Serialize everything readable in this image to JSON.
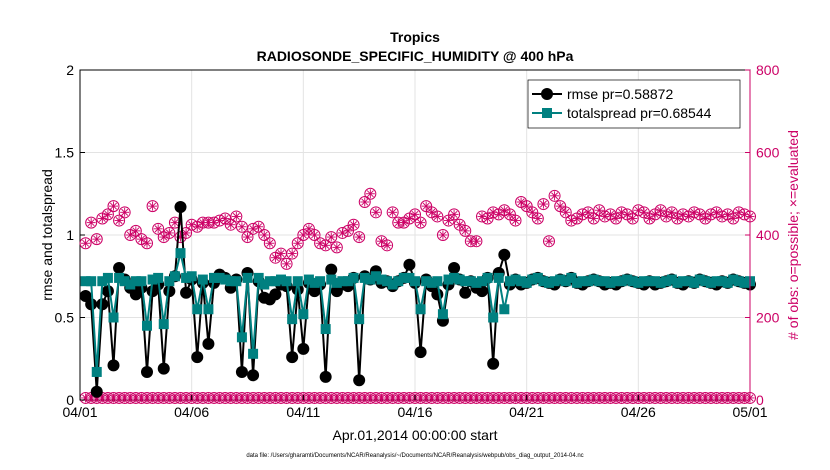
{
  "chart_data": {
    "type": "line",
    "title": "Tropics",
    "subtitle": "RADIOSONDE_SPECIFIC_HUMIDITY @ 400 hPa",
    "xlabel": "Apr.01,2014 00:00:00 start",
    "ylabel_left": "rmse and totalspread",
    "ylabel_right": "# of obs: o=possible; ×=evaluated",
    "footnote": "data file: /Users/gharamti/Documents/NCAR/Reanalysis/~/Documents/NCAR/Reanalysis/webpub/obs_diag_output_2014-04.nc",
    "xlim": [
      0,
      30
    ],
    "ylim_left": [
      0,
      2
    ],
    "ylim_right": [
      0,
      800
    ],
    "x_ticks": [
      {
        "value": 0,
        "label": "04/01"
      },
      {
        "value": 5,
        "label": "04/06"
      },
      {
        "value": 10,
        "label": "04/11"
      },
      {
        "value": 15,
        "label": "04/16"
      },
      {
        "value": 20,
        "label": "04/21"
      },
      {
        "value": 25,
        "label": "04/26"
      },
      {
        "value": 30,
        "label": "05/01"
      }
    ],
    "y_ticks_left": [
      {
        "value": 0,
        "label": "0"
      },
      {
        "value": 0.5,
        "label": "0.5"
      },
      {
        "value": 1,
        "label": "1"
      },
      {
        "value": 1.5,
        "label": "1.5"
      },
      {
        "value": 2,
        "label": "2"
      }
    ],
    "y_ticks_right": [
      {
        "value": 0,
        "label": "0"
      },
      {
        "value": 200,
        "label": "200"
      },
      {
        "value": 400,
        "label": "400"
      },
      {
        "value": 600,
        "label": "600"
      },
      {
        "value": 800,
        "label": "800"
      }
    ],
    "x_days": [
      0.25,
      0.5,
      0.75,
      1.0,
      1.25,
      1.5,
      1.75,
      2.0,
      2.25,
      2.5,
      2.75,
      3.0,
      3.25,
      3.5,
      3.75,
      4.0,
      4.25,
      4.5,
      4.75,
      5.0,
      5.25,
      5.5,
      5.75,
      6.0,
      6.25,
      6.5,
      6.75,
      7.0,
      7.25,
      7.5,
      7.75,
      8.0,
      8.25,
      8.5,
      8.75,
      9.0,
      9.25,
      9.5,
      9.75,
      10.0,
      10.25,
      10.5,
      10.75,
      11.0,
      11.25,
      11.5,
      11.75,
      12.0,
      12.25,
      12.5,
      12.75,
      13.0,
      13.25,
      13.5,
      13.75,
      14.0,
      14.25,
      14.5,
      14.75,
      15.0,
      15.25,
      15.5,
      15.75,
      16.0,
      16.25,
      16.5,
      16.75,
      17.0,
      17.25,
      17.5,
      17.75,
      18.0,
      18.25,
      18.5,
      18.75,
      19.0,
      19.25,
      19.5,
      19.75,
      20.0,
      20.25,
      20.5,
      20.75,
      21.0,
      21.25,
      21.5,
      21.75,
      22.0,
      22.25,
      22.5,
      22.75,
      23.0,
      23.25,
      23.5,
      23.75,
      24.0,
      24.25,
      24.5,
      24.75,
      25.0,
      25.25,
      25.5,
      25.75,
      26.0,
      26.25,
      26.5,
      26.75,
      27.0,
      27.25,
      27.5,
      27.75,
      28.0,
      28.25,
      28.5,
      28.75,
      29.0,
      29.25,
      29.5,
      29.75,
      30.0
    ],
    "series": [
      {
        "name": "rmse pr=0.58872",
        "axis": "left",
        "color": "#000000",
        "marker": "circle",
        "values": [
          0.63,
          0.58,
          0.05,
          0.58,
          0.66,
          0.21,
          0.8,
          0.73,
          0.68,
          0.64,
          0.68,
          0.17,
          0.66,
          0.7,
          0.19,
          0.66,
          0.75,
          1.17,
          0.65,
          0.73,
          0.26,
          0.71,
          0.34,
          0.71,
          0.76,
          0.74,
          0.68,
          0.73,
          0.17,
          0.77,
          0.15,
          0.72,
          0.62,
          0.61,
          0.64,
          0.7,
          0.69,
          0.26,
          0.67,
          0.31,
          0.71,
          0.66,
          0.7,
          0.14,
          0.79,
          0.66,
          0.7,
          0.69,
          0.74,
          0.12,
          0.75,
          0.73,
          0.78,
          0.71,
          0.72,
          0.69,
          0.72,
          0.74,
          0.82,
          0.71,
          0.29,
          0.73,
          0.69,
          0.64,
          0.48,
          0.7,
          0.8,
          0.73,
          0.65,
          0.72,
          0.68,
          0.66,
          0.74,
          0.22,
          0.77,
          0.88,
          0.7,
          0.73,
          0.7,
          0.71,
          0.73,
          0.74,
          0.72,
          0.71,
          0.7,
          0.73,
          0.72,
          0.74,
          0.71,
          0.7,
          0.72,
          0.73,
          0.72,
          0.7,
          0.71,
          0.7,
          0.72,
          0.73,
          0.72,
          0.71,
          0.7,
          0.72,
          0.7,
          0.71,
          0.72,
          0.73,
          0.71,
          0.7,
          0.72,
          0.71,
          0.73,
          0.72,
          0.71,
          0.7,
          0.72,
          0.71,
          0.73,
          0.72,
          0.71,
          0.7
        ]
      },
      {
        "name": "totalspread pr=0.68544",
        "axis": "left",
        "color": "#008080",
        "marker": "square",
        "values": [
          0.72,
          0.72,
          0.17,
          0.72,
          0.74,
          0.5,
          0.74,
          0.72,
          0.7,
          0.72,
          0.72,
          0.45,
          0.73,
          0.74,
          0.46,
          0.72,
          0.75,
          0.89,
          0.74,
          0.75,
          0.55,
          0.73,
          0.55,
          0.74,
          0.74,
          0.73,
          0.72,
          0.72,
          0.38,
          0.74,
          0.28,
          0.74,
          0.7,
          0.72,
          0.72,
          0.73,
          0.72,
          0.49,
          0.72,
          0.52,
          0.73,
          0.71,
          0.72,
          0.43,
          0.73,
          0.71,
          0.72,
          0.72,
          0.74,
          0.49,
          0.74,
          0.73,
          0.75,
          0.73,
          0.72,
          0.7,
          0.72,
          0.74,
          0.74,
          0.72,
          0.55,
          0.72,
          0.71,
          0.72,
          0.52,
          0.73,
          0.74,
          0.73,
          0.72,
          0.72,
          0.71,
          0.72,
          0.74,
          0.5,
          0.74,
          0.55,
          0.72,
          0.73,
          0.72,
          0.71,
          0.73,
          0.74,
          0.72,
          0.71,
          0.72,
          0.73,
          0.72,
          0.74,
          0.71,
          0.72,
          0.72,
          0.73,
          0.72,
          0.72,
          0.71,
          0.72,
          0.72,
          0.73,
          0.72,
          0.71,
          0.72,
          0.72,
          0.72,
          0.71,
          0.72,
          0.73,
          0.71,
          0.72,
          0.72,
          0.71,
          0.73,
          0.72,
          0.71,
          0.72,
          0.72,
          0.71,
          0.73,
          0.72,
          0.71,
          0.72
        ]
      },
      {
        "name": "obs possible",
        "axis": "right",
        "color": "#cc0066",
        "marker": "circle-open",
        "values": [
          380,
          430,
          390,
          440,
          450,
          470,
          435,
          455,
          400,
          410,
          390,
          380,
          470,
          415,
          395,
          405,
          430,
          395,
          405,
          425,
          420,
          430,
          430,
          430,
          435,
          440,
          425,
          445,
          420,
          395,
          415,
          420,
          400,
          380,
          345,
          355,
          330,
          355,
          380,
          400,
          415,
          400,
          380,
          375,
          395,
          370,
          405,
          410,
          425,
          395,
          480,
          500,
          455,
          385,
          375,
          455,
          430,
          430,
          440,
          450,
          430,
          470,
          455,
          445,
          400,
          435,
          450,
          425,
          410,
          385,
          385,
          445,
          440,
          455,
          450,
          460,
          450,
          435,
          480,
          470,
          455,
          440,
          475,
          385,
          495,
          470,
          455,
          435,
          440,
          450,
          455,
          440,
          460,
          445,
          450,
          440,
          455,
          450,
          440,
          460,
          455,
          440,
          450,
          460,
          445,
          455,
          440,
          450,
          445,
          455,
          450,
          440,
          450,
          455,
          445,
          450,
          440,
          455,
          450,
          445
        ]
      },
      {
        "name": "obs evaluated",
        "axis": "right",
        "color": "#cc0066",
        "marker": "asterisk",
        "values": [
          380,
          430,
          390,
          440,
          450,
          470,
          435,
          455,
          400,
          410,
          390,
          380,
          470,
          415,
          395,
          405,
          430,
          395,
          405,
          425,
          420,
          430,
          430,
          430,
          435,
          440,
          425,
          445,
          420,
          395,
          415,
          420,
          400,
          380,
          345,
          355,
          330,
          355,
          380,
          400,
          415,
          400,
          380,
          375,
          395,
          370,
          405,
          410,
          425,
          395,
          480,
          500,
          455,
          385,
          375,
          455,
          430,
          430,
          440,
          450,
          430,
          470,
          455,
          445,
          400,
          435,
          450,
          425,
          410,
          385,
          385,
          445,
          440,
          455,
          450,
          460,
          450,
          435,
          480,
          470,
          455,
          440,
          475,
          385,
          495,
          470,
          455,
          435,
          440,
          450,
          455,
          440,
          460,
          445,
          450,
          440,
          455,
          450,
          440,
          460,
          455,
          440,
          450,
          460,
          445,
          455,
          440,
          450,
          445,
          455,
          450,
          440,
          450,
          455,
          445,
          450,
          440,
          455,
          450,
          445
        ]
      },
      {
        "name": "obs low (possible/evaluated)",
        "axis": "right",
        "color": "#cc0066",
        "marker": "circle-asterisk",
        "values": [
          5,
          5,
          5,
          5,
          5,
          5,
          5,
          5,
          5,
          5,
          5,
          5,
          5,
          5,
          5,
          5,
          5,
          5,
          5,
          5,
          5,
          5,
          5,
          5,
          5,
          5,
          5,
          5,
          5,
          5,
          5,
          5,
          5,
          5,
          5,
          5,
          5,
          5,
          5,
          5,
          5,
          5,
          5,
          5,
          5,
          5,
          5,
          5,
          5,
          5,
          5,
          5,
          5,
          5,
          5,
          5,
          5,
          5,
          5,
          5,
          5,
          5,
          5,
          5,
          5,
          5,
          5,
          5,
          5,
          5,
          5,
          5,
          5,
          5,
          5,
          5,
          5,
          5,
          5,
          5,
          5,
          5,
          5,
          5,
          5,
          5,
          5,
          5,
          5,
          5,
          5,
          5,
          5,
          5,
          5,
          5,
          5,
          5,
          5,
          5,
          5,
          5,
          5,
          5,
          5,
          5,
          5,
          5,
          5,
          5,
          5,
          5,
          5,
          5,
          5,
          5,
          5,
          5,
          5,
          5
        ]
      }
    ],
    "legend": [
      {
        "label": "rmse pr=0.58872",
        "color": "#000000",
        "marker": "circle"
      },
      {
        "label": "totalspread pr=0.68544",
        "color": "#008080",
        "marker": "square"
      }
    ],
    "legend_position": "top-right",
    "grid": true
  }
}
